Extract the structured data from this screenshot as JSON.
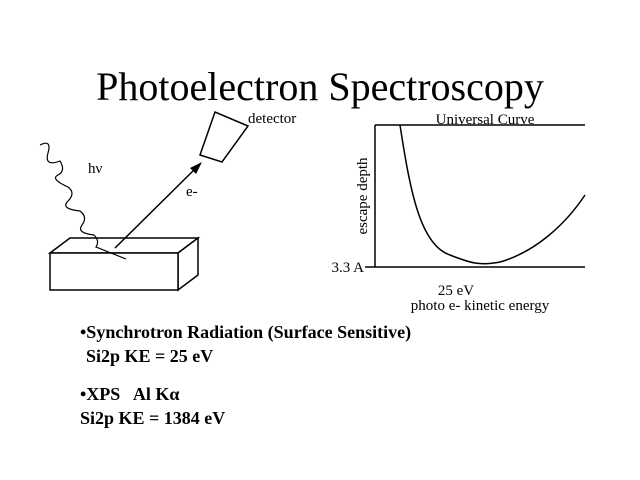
{
  "title": "Photoelectron Spectroscopy",
  "diagram": {
    "detector": "detector",
    "photon": "hν",
    "electron": "e-"
  },
  "graph": {
    "title": "Universal Curve",
    "y_label": "escape depth",
    "min_label": "3.3 A",
    "min_x_label": "25 eV",
    "x_label": "photo e- kinetic energy"
  },
  "bullets": [
    {
      "line1": "•Synchrotron Radiation (Surface Sensitive)",
      "line2": "Si2p KE = 25 eV"
    },
    {
      "line1": "•XPS   Al Kα",
      "line2": "Si2p KE = 1384 eV"
    }
  ]
}
